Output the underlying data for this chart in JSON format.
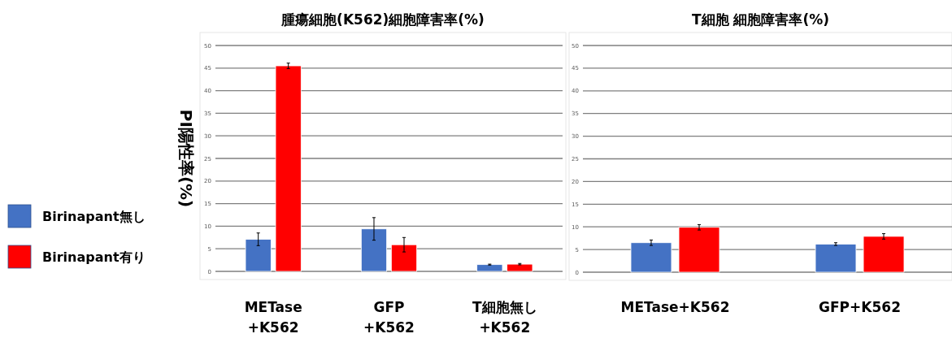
{
  "chart_data": [
    {
      "type": "bar",
      "title": "腫瘍細胞(K562)細胞障害率(%)",
      "ylabel": "PI陽性率(%)",
      "categories": [
        "METase\n+K562",
        "GFP\n+K562",
        "T細胞無し\n+K562"
      ],
      "series": [
        {
          "name": "Birinapant無し",
          "color": "#4472c4",
          "values": [
            7.1,
            9.4,
            1.5
          ],
          "errors": [
            1.4,
            2.5,
            0.1
          ]
        },
        {
          "name": "Birinapant有り",
          "color": "#ff0000",
          "values": [
            45.5,
            5.9,
            1.6
          ],
          "errors": [
            0.6,
            1.6,
            0.15
          ]
        }
      ],
      "ylim": [
        0,
        50
      ],
      "yticks": [
        0,
        5,
        10,
        15,
        20,
        25,
        30,
        35,
        40,
        45,
        50
      ],
      "grid": "y",
      "legend": "left"
    },
    {
      "type": "bar",
      "title": "T細胞 細胞障害率(%)",
      "categories": [
        "METase+K562",
        "GFP+K562"
      ],
      "series": [
        {
          "color": "#4472c4",
          "values": [
            6.5,
            6.2
          ],
          "errors": [
            0.6,
            0.3
          ]
        },
        {
          "color": "#ff0000",
          "values": [
            9.9,
            7.9
          ],
          "errors": [
            0.6,
            0.6
          ]
        }
      ],
      "ylim": [
        0,
        50
      ],
      "yticks": [
        0,
        5,
        10,
        15,
        20,
        25,
        30,
        35,
        40,
        45,
        50
      ],
      "grid": "y"
    }
  ]
}
